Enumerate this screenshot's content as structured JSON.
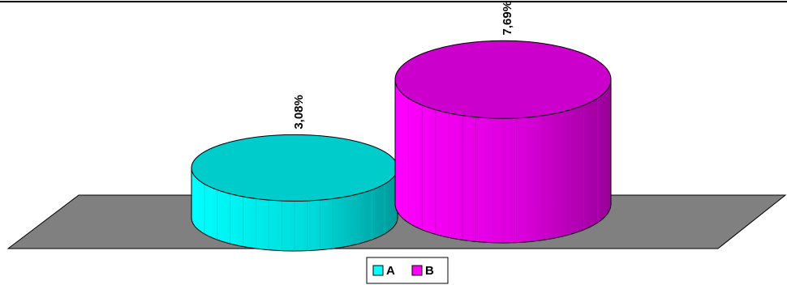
{
  "chart_data": {
    "type": "bar",
    "series": [
      {
        "name": "A",
        "color": "#00ffff",
        "values": [
          3.08
        ],
        "value_labels": [
          "3,08%"
        ]
      },
      {
        "name": "B",
        "color": "#ff00ff",
        "values": [
          7.69
        ],
        "value_labels": [
          "7,69%"
        ]
      }
    ],
    "legend": "bottom"
  }
}
